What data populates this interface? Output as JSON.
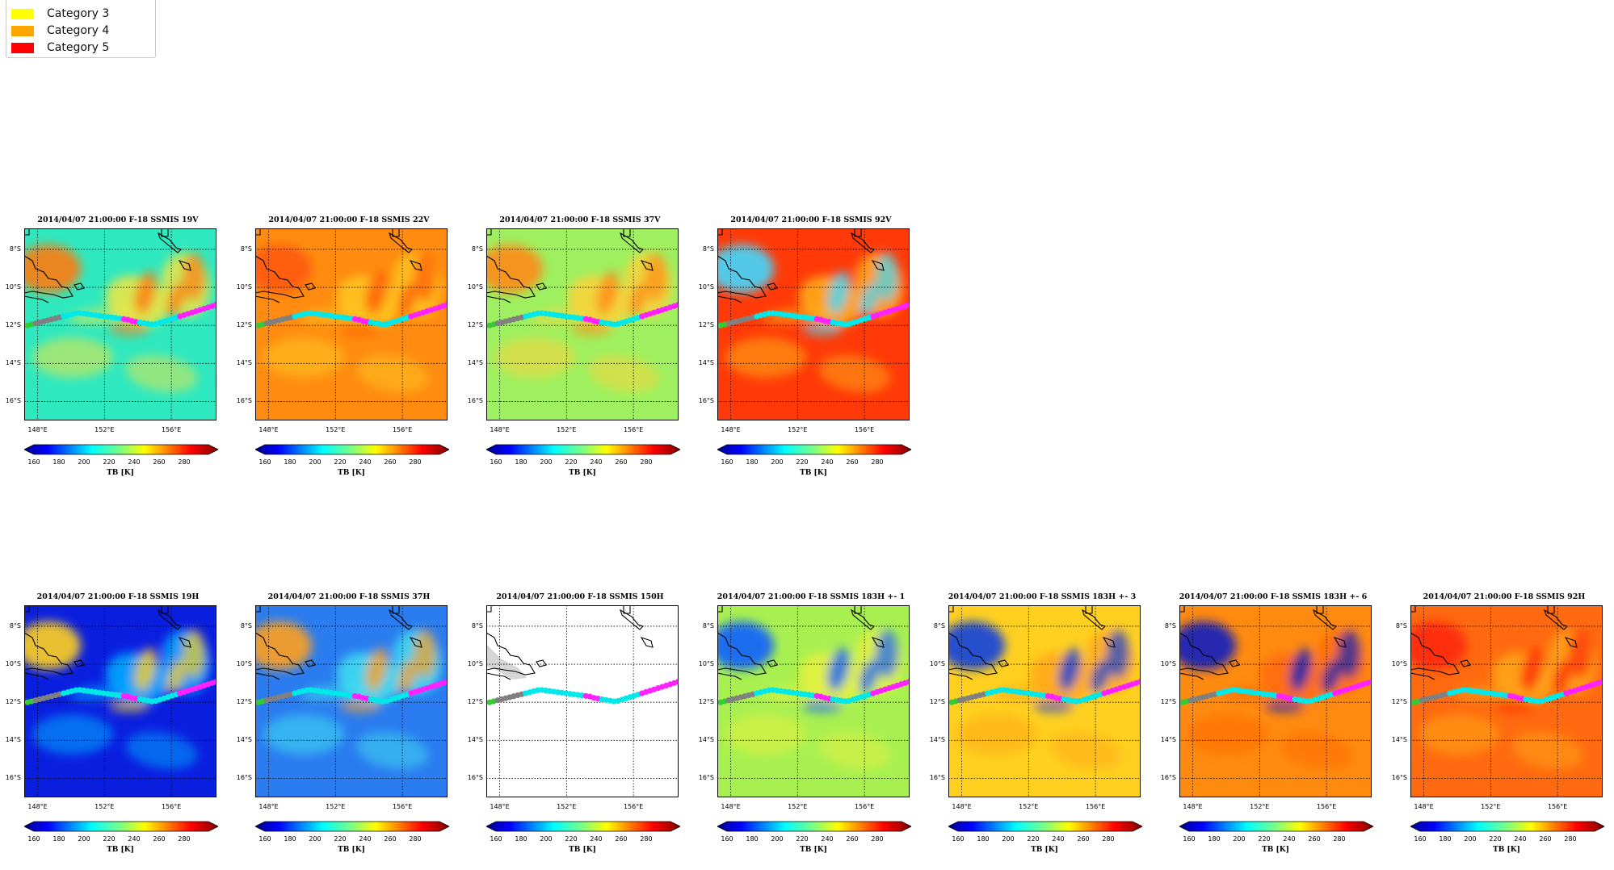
{
  "legend": {
    "items": [
      {
        "label": "Category 3",
        "color": "#ffff00"
      },
      {
        "label": "Category 4",
        "color": "#ffa500"
      },
      {
        "label": "Category 5",
        "color": "#ff0000"
      }
    ]
  },
  "axes": {
    "lat_labels": [
      "8°S",
      "10°S",
      "12°S",
      "14°S",
      "16°S"
    ],
    "lon_labels": [
      "148°E",
      "152°E",
      "156°E"
    ],
    "cbar_ticks": [
      "160",
      "180",
      "200",
      "220",
      "240",
      "260",
      "280"
    ],
    "cbar_label": "TB [K]"
  },
  "chart_data": [
    {
      "type": "heatmap",
      "title": "2014/04/07 21:00:00  F-18 SSMIS 19V",
      "base": "#2ee8c0",
      "mid": "#f4e640",
      "hot": "#ff7a10"
    },
    {
      "type": "heatmap",
      "title": "2014/04/07 21:00:00  F-18 SSMIS 22V",
      "base": "#ff8c10",
      "mid": "#ffc820",
      "hot": "#ff5a08"
    },
    {
      "type": "heatmap",
      "title": "2014/04/07 21:00:00  F-18 SSMIS 37V",
      "base": "#9ef060",
      "mid": "#ffd23a",
      "hot": "#ff8a18"
    },
    {
      "type": "heatmap",
      "title": "2014/04/07 21:00:00  F-18 SSMIS 92V",
      "base": "#ff3a08",
      "mid": "#ffb018",
      "hot": "#40d8ff"
    },
    {
      "type": "heatmap",
      "title": "2014/04/07 21:00:00  F-18 SSMIS 19H",
      "base": "#0a1ee0",
      "mid": "#00b0ff",
      "hot": "#ffd020"
    },
    {
      "type": "heatmap",
      "title": "2014/04/07 21:00:00  F-18 SSMIS 37H",
      "base": "#2a7cf0",
      "mid": "#40e0f0",
      "hot": "#ffa020"
    },
    {
      "type": "heatmap",
      "title": "2014/04/07 21:00:00  F-18 SSMIS 150H",
      "base": "#ffffff",
      "mid": "#ffffff",
      "hot": "#ffffff"
    },
    {
      "type": "heatmap",
      "title": "2014/04/07 21:00:00  F-18 SSMIS 183H +- 1",
      "base": "#a8f050",
      "mid": "#e8f040",
      "hot": "#1060ff"
    },
    {
      "type": "heatmap",
      "title": "2014/04/07 21:00:00  F-18 SSMIS 183H +- 3",
      "base": "#ffd020",
      "mid": "#ffa818",
      "hot": "#1040e0"
    },
    {
      "type": "heatmap",
      "title": "2014/04/07 21:00:00  F-18 SSMIS 183H +- 6",
      "base": "#ff8a10",
      "mid": "#ff6a08",
      "hot": "#0a20c0"
    },
    {
      "type": "heatmap",
      "title": "2014/04/07 21:00:00  F-18 SSMIS 92H",
      "base": "#ff6a10",
      "mid": "#ffa818",
      "hot": "#ff2a08"
    }
  ]
}
